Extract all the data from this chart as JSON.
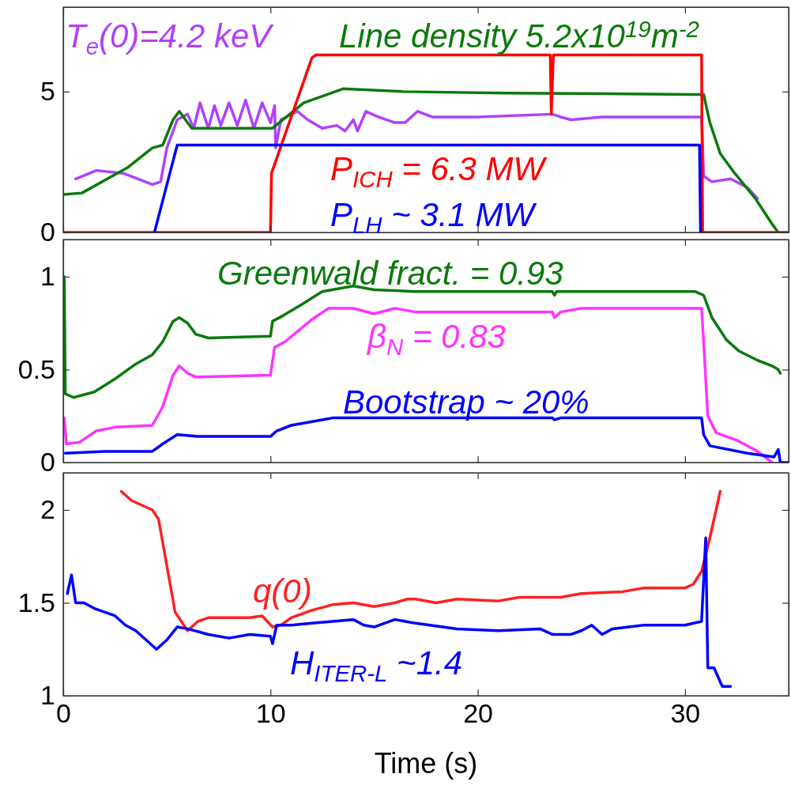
{
  "chart_data": [
    {
      "type": "line",
      "xlim": [
        0,
        35
      ],
      "xticks": [
        0,
        10,
        20,
        30
      ],
      "ylim": [
        0,
        8
      ],
      "yticks": [
        0,
        5
      ],
      "tick_labels": "y",
      "series": [
        {
          "name": "T$_{e}$(0)=4.2 keV",
          "color": "#b040ff",
          "x": [
            0.6,
            1.6,
            2.9,
            4.3,
            4.7,
            5.0,
            5.5,
            6.0,
            6.3,
            6.6,
            7.0,
            7.3,
            7.6,
            8.0,
            8.4,
            8.8,
            9.2,
            9.6,
            10.0,
            10.2,
            10.25,
            10.5,
            11.3,
            11.8,
            12.5,
            13.2,
            13.6,
            14.0,
            14.2,
            14.6,
            15.2,
            16.0,
            16.5,
            17.1,
            17.8,
            20.0,
            23.6,
            24.0,
            24.5,
            26.0,
            30.8,
            30.9,
            31.3,
            32.2,
            33.0,
            33.5
          ],
          "values": [
            1.9,
            2.2,
            2.1,
            1.7,
            1.8,
            3.0,
            4.0,
            4.2,
            3.7,
            4.6,
            3.7,
            4.5,
            3.8,
            4.6,
            3.8,
            4.7,
            3.7,
            4.6,
            3.9,
            4.5,
            3.0,
            4.0,
            4.3,
            4.0,
            3.7,
            3.8,
            3.6,
            4.0,
            3.6,
            4.3,
            4.1,
            3.9,
            3.9,
            4.3,
            4.1,
            4.1,
            4.2,
            4.1,
            4.0,
            4.1,
            4.1,
            2.0,
            1.8,
            1.9,
            1.6,
            1.2
          ]
        },
        {
          "name": "Line density 5.2x10$^{19}$m$^{-2}$",
          "color": "#0a7a0a",
          "x": [
            0,
            0.9,
            3.1,
            4.3,
            4.8,
            5.3,
            5.6,
            6.2,
            10.1,
            11.6,
            13.5,
            16.4,
            21.3,
            30.2,
            30.9,
            31.2,
            31.7,
            32.4,
            33.4,
            34.2,
            34.5
          ],
          "values": [
            1.35,
            1.4,
            2.3,
            3.0,
            3.1,
            4.0,
            4.3,
            3.7,
            3.7,
            4.6,
            5.1,
            5.0,
            4.95,
            4.9,
            4.9,
            3.9,
            2.8,
            2.1,
            1.2,
            0.3,
            0
          ]
        },
        {
          "name": "P$_{ICH}$ = 6.3 MW",
          "color": "#ff0000",
          "x": [
            0,
            10.0,
            10.05,
            12.0,
            12.2,
            23.5,
            23.55,
            23.65,
            30.8,
            30.85,
            35
          ],
          "values": [
            0,
            0,
            2.1,
            6.2,
            6.3,
            6.3,
            4.2,
            6.3,
            6.3,
            0,
            0
          ]
        },
        {
          "name": "P$_{LH}$ ~ 3.1 MW",
          "color": "#0000ff",
          "x": [
            4.4,
            5.5,
            30.7,
            30.75
          ],
          "values": [
            0,
            3.1,
            3.1,
            0
          ]
        }
      ]
    },
    {
      "type": "line",
      "xlim": [
        0,
        35
      ],
      "xticks": [
        0,
        10,
        20,
        30
      ],
      "ylim": [
        0,
        1.2
      ],
      "yticks": [
        0,
        0.5,
        1
      ],
      "tick_labels": "y",
      "series": [
        {
          "name": "Greenwald fract. = 0.93",
          "color": "#0a7a0a",
          "x": [
            0.05,
            0.1,
            0.5,
            1.5,
            2.5,
            3.5,
            4.3,
            4.8,
            5.3,
            5.6,
            6.0,
            6.4,
            7,
            10,
            10.1,
            10.6,
            11.5,
            12.5,
            14,
            15,
            17,
            23.6,
            23.7,
            23.8,
            30.5,
            30.9,
            31.3,
            32,
            32.6,
            33.5,
            34.2,
            34.5,
            34.6
          ],
          "values": [
            1.0,
            0.37,
            0.35,
            0.38,
            0.45,
            0.53,
            0.58,
            0.65,
            0.76,
            0.78,
            0.75,
            0.69,
            0.67,
            0.68,
            0.76,
            0.79,
            0.85,
            0.92,
            0.95,
            0.93,
            0.92,
            0.92,
            0.9,
            0.92,
            0.92,
            0.9,
            0.78,
            0.66,
            0.6,
            0.55,
            0.52,
            0.5,
            0.48
          ]
        },
        {
          "name": "β$_{N}$ = 0.83",
          "color": "#ff33ff",
          "x": [
            0.05,
            0.15,
            0.8,
            1.6,
            2.5,
            4.3,
            4.8,
            5.3,
            5.6,
            6,
            6.4,
            10,
            10.2,
            10.7,
            12,
            12.8,
            14,
            15,
            16,
            17,
            23.6,
            23.7,
            24,
            25,
            30.8,
            30.9,
            31.1,
            31.5,
            32.5,
            33.5,
            34.2
          ],
          "values": [
            0.24,
            0.1,
            0.11,
            0.17,
            0.19,
            0.2,
            0.3,
            0.47,
            0.52,
            0.48,
            0.46,
            0.47,
            0.62,
            0.65,
            0.77,
            0.83,
            0.83,
            0.8,
            0.83,
            0.81,
            0.81,
            0.78,
            0.81,
            0.83,
            0.83,
            0.65,
            0.25,
            0.16,
            0.12,
            0.06,
            0
          ]
        },
        {
          "name": "Bootstrap ~ 20%",
          "color": "#0000ff",
          "x": [
            0.1,
            2,
            4.3,
            4.8,
            5.5,
            6.5,
            10,
            10.3,
            11,
            12.5,
            13,
            23.6,
            23.7,
            24,
            30.8,
            30.9,
            31.2,
            33,
            34.3,
            34.5,
            34.6,
            35
          ],
          "values": [
            0.05,
            0.06,
            0.06,
            0.1,
            0.15,
            0.14,
            0.14,
            0.17,
            0.2,
            0.23,
            0.24,
            0.24,
            0.23,
            0.24,
            0.24,
            0.15,
            0.09,
            0.05,
            0.03,
            0.07,
            0,
            0
          ]
        }
      ]
    },
    {
      "type": "line",
      "xlim": [
        0,
        35
      ],
      "xticks": [
        0,
        10,
        20,
        30
      ],
      "ylim": [
        1,
        2.2
      ],
      "yticks": [
        1,
        1.5,
        2
      ],
      "xlabel": "Time (s)",
      "series": [
        {
          "name": "q(0)",
          "color": "#ff2020",
          "x": [
            2.8,
            3.3,
            4.3,
            4.6,
            5,
            5.4,
            6,
            6.5,
            7,
            9,
            9.6,
            10.1,
            10.5,
            11,
            12,
            13,
            14,
            15,
            16,
            16.6,
            17,
            18,
            19,
            21,
            22,
            24,
            25,
            27,
            28,
            30,
            30.4,
            30.8,
            31.2,
            31.7
          ],
          "values": [
            2.1,
            2.05,
            2.0,
            1.95,
            1.7,
            1.45,
            1.35,
            1.4,
            1.42,
            1.42,
            1.43,
            1.37,
            1.38,
            1.42,
            1.46,
            1.49,
            1.5,
            1.48,
            1.5,
            1.52,
            1.52,
            1.5,
            1.52,
            1.51,
            1.53,
            1.53,
            1.55,
            1.56,
            1.58,
            1.58,
            1.6,
            1.67,
            1.85,
            2.1
          ]
        },
        {
          "name": "H$_{ITER-L}$ ~1.4",
          "color": "#0000ff",
          "x": [
            0.2,
            0.4,
            0.6,
            1,
            1.5,
            2.5,
            3,
            3.5,
            4.5,
            5,
            5.5,
            6,
            7,
            8,
            9,
            10,
            10.1,
            10.3,
            11,
            12,
            14,
            14.5,
            15,
            16,
            17,
            19,
            21,
            23,
            23.6,
            24.5,
            25,
            25.5,
            26,
            26.5,
            28,
            30,
            30.8,
            31.0,
            31.1,
            31.4,
            31.8,
            32.2
          ],
          "values": [
            1.55,
            1.65,
            1.5,
            1.5,
            1.47,
            1.43,
            1.38,
            1.35,
            1.25,
            1.3,
            1.37,
            1.36,
            1.33,
            1.31,
            1.33,
            1.32,
            1.28,
            1.38,
            1.38,
            1.39,
            1.41,
            1.38,
            1.37,
            1.41,
            1.39,
            1.36,
            1.35,
            1.36,
            1.33,
            1.33,
            1.35,
            1.38,
            1.33,
            1.36,
            1.38,
            1.38,
            1.4,
            1.85,
            1.15,
            1.15,
            1.05,
            1.05
          ]
        }
      ]
    }
  ]
}
